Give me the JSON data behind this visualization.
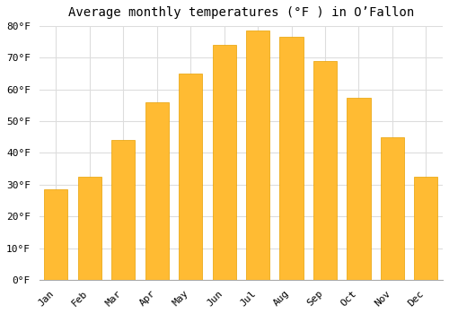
{
  "title": "Average monthly temperatures (°F ) in O’Fallon",
  "months": [
    "Jan",
    "Feb",
    "Mar",
    "Apr",
    "May",
    "Jun",
    "Jul",
    "Aug",
    "Sep",
    "Oct",
    "Nov",
    "Dec"
  ],
  "values": [
    28.5,
    32.5,
    44.0,
    56.0,
    65.0,
    74.0,
    78.5,
    76.5,
    69.0,
    57.5,
    45.0,
    32.5
  ],
  "bar_color": "#FFBB33",
  "bar_edge_color": "#E8A000",
  "background_color": "#FFFFFF",
  "plot_bg_color": "#FFFFFF",
  "grid_color": "#DDDDDD",
  "ylim": [
    0,
    80
  ],
  "yticks": [
    0,
    10,
    20,
    30,
    40,
    50,
    60,
    70,
    80
  ],
  "ytick_labels": [
    "0°F",
    "10°F",
    "20°F",
    "30°F",
    "40°F",
    "50°F",
    "60°F",
    "70°F",
    "80°F"
  ],
  "title_fontsize": 10,
  "tick_fontsize": 8,
  "font_family": "monospace"
}
